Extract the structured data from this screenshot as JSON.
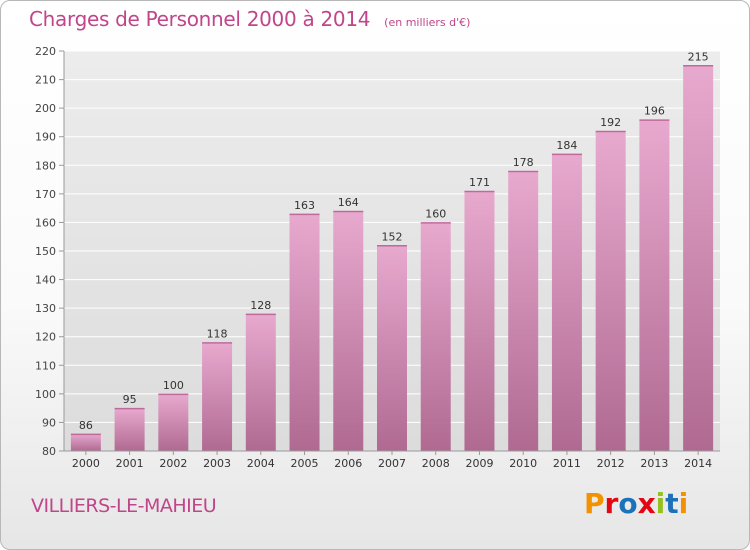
{
  "header": {
    "title": "Charges de Personnel 2000 à 2014",
    "subtitle": "(en milliers d'€)"
  },
  "footer": {
    "commune": "VILLIERS-LE-MAHIEU",
    "brand": "Proxiti"
  },
  "colors": {
    "accent": "#c0458a",
    "bar_top": "#e8a9cf",
    "bar_bottom": "#b06a92",
    "logo_letters": [
      "#f39200",
      "#e30613",
      "#1d71b8",
      "#e30613",
      "#95c11f",
      "#1d71b8",
      "#f39200"
    ]
  },
  "chart_data": {
    "type": "bar",
    "title": "Charges de Personnel 2000 à 2014",
    "subtitle": "(en milliers d'€)",
    "categories": [
      "2000",
      "2001",
      "2002",
      "2003",
      "2004",
      "2005",
      "2006",
      "2007",
      "2008",
      "2009",
      "2010",
      "2011",
      "2012",
      "2013",
      "2014"
    ],
    "values": [
      86,
      95,
      100,
      118,
      128,
      163,
      164,
      152,
      160,
      171,
      178,
      184,
      192,
      196,
      215
    ],
    "ylim": [
      80,
      220
    ],
    "yticks": [
      80,
      90,
      100,
      110,
      120,
      130,
      140,
      150,
      160,
      170,
      180,
      190,
      200,
      210,
      220
    ],
    "grid": true,
    "legend": "none",
    "data_labels": true
  }
}
